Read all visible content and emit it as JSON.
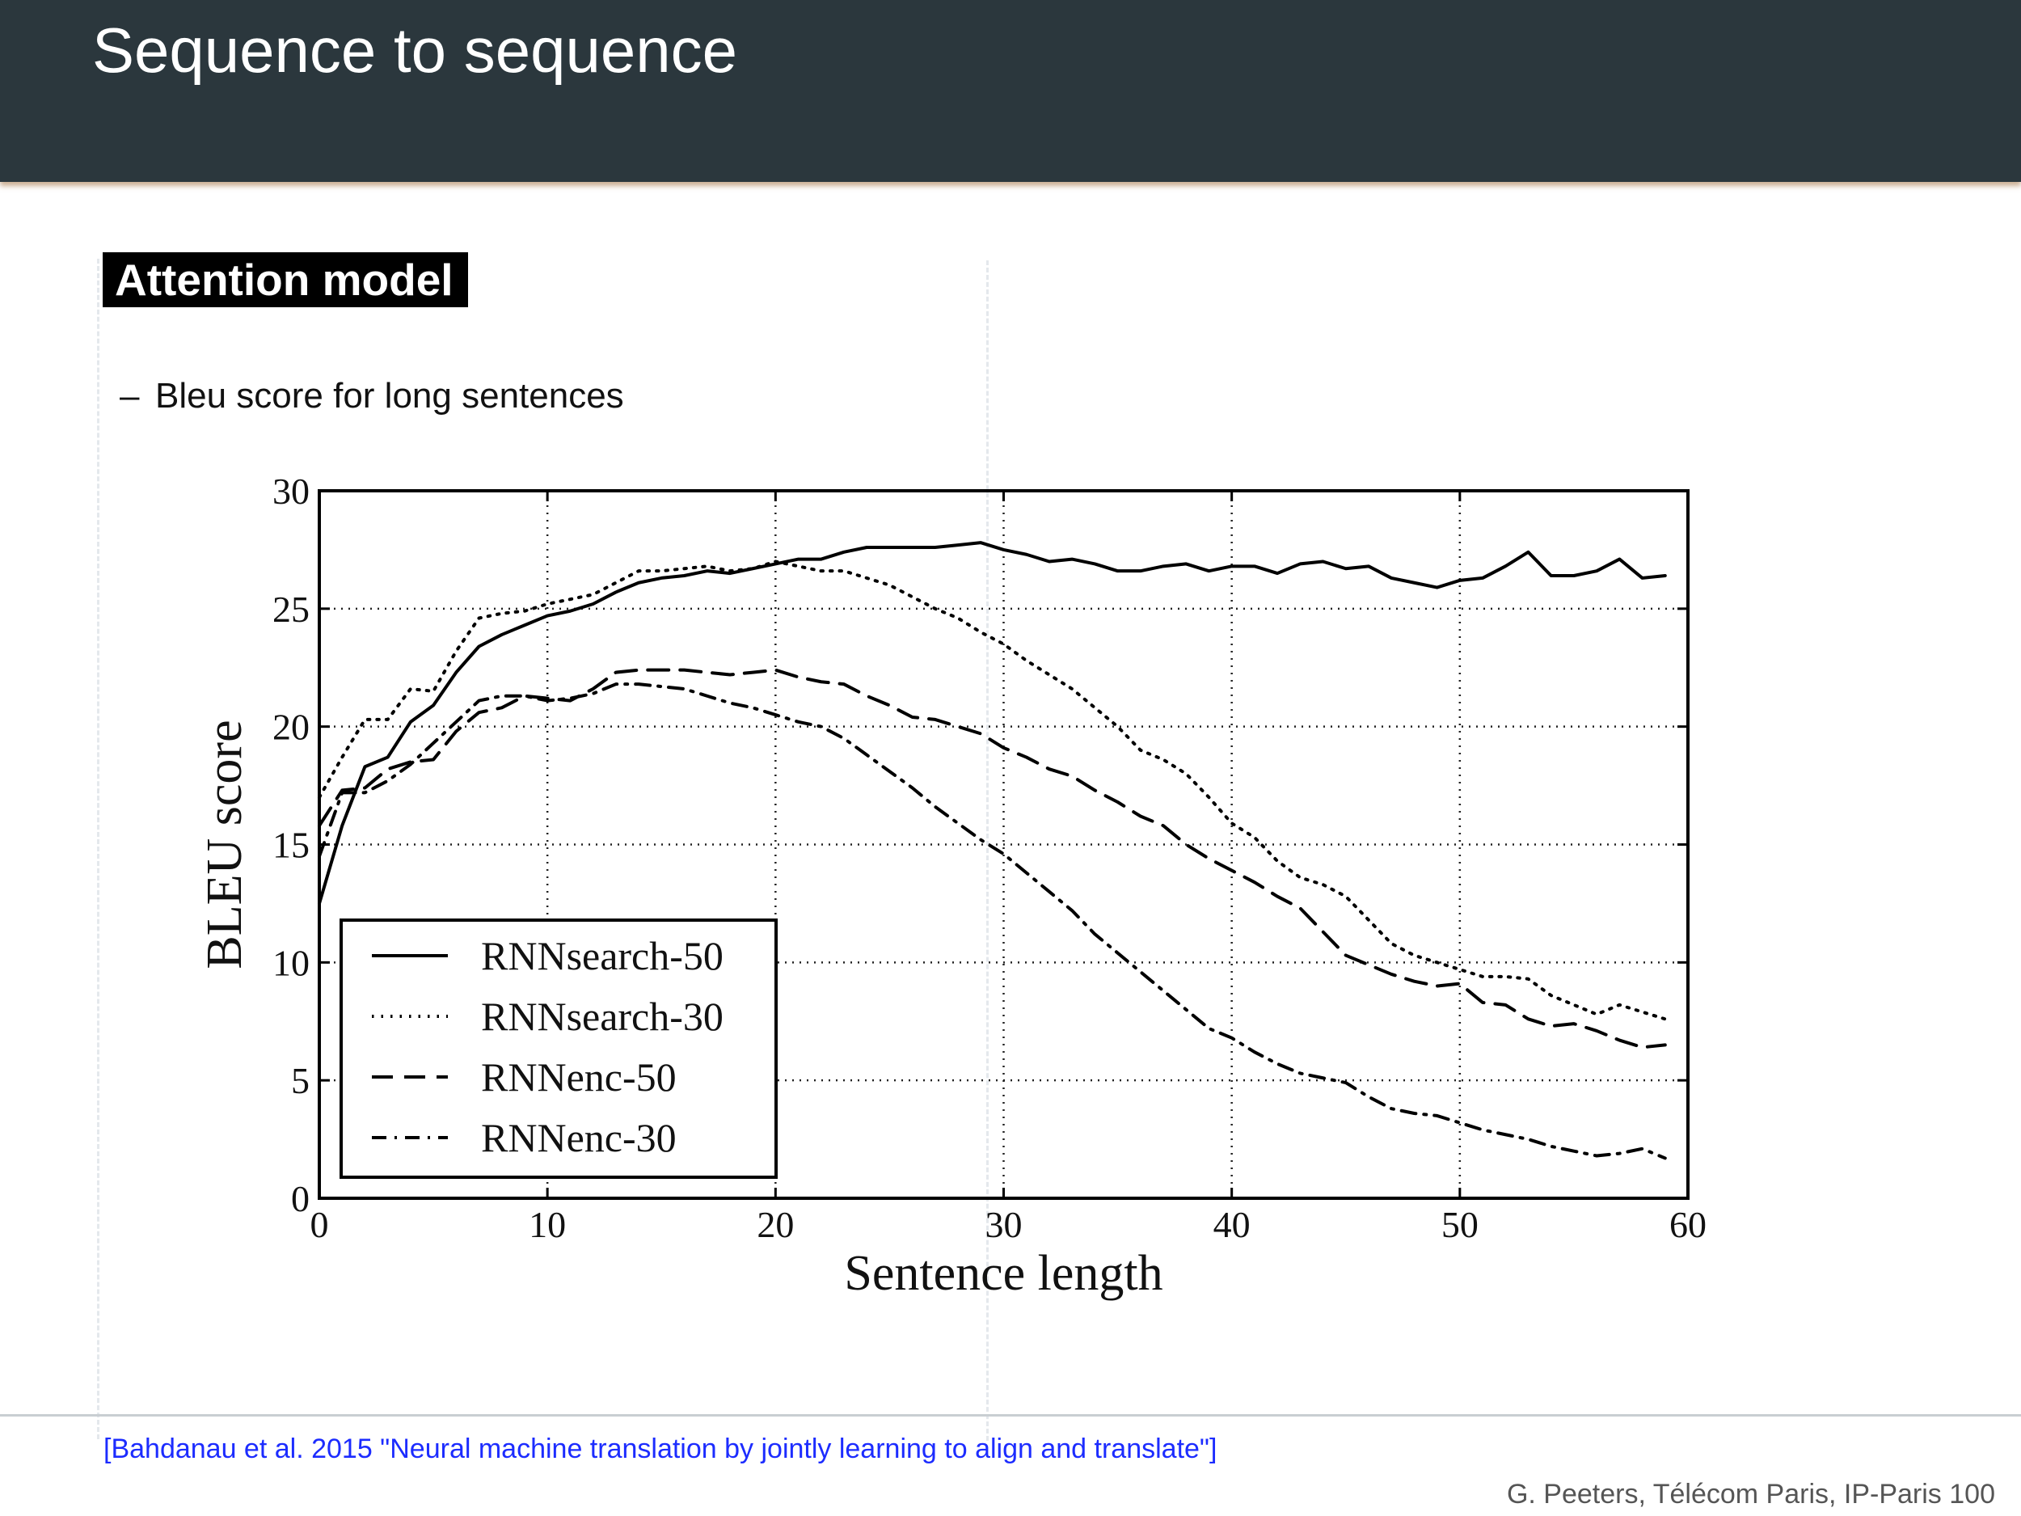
{
  "slide": {
    "title": "Sequence to sequence",
    "section": "Attention model",
    "bullet": "Bleu score for long sentences",
    "citation": "[Bahdanau et al. 2015 \"Neural machine translation by jointly learning to align and translate\"]",
    "footer": "G. Peeters, Télécom Paris, IP-Paris 100"
  },
  "colors": {
    "header_bg": "#2b373d",
    "accent": "#a86e3c",
    "citation": "#1c2cff"
  },
  "chart_data": {
    "type": "line",
    "xlabel": "Sentence length",
    "ylabel": "BLEU score",
    "xlim": [
      0,
      60
    ],
    "ylim": [
      0,
      30
    ],
    "xticks": [
      "0",
      "10",
      "20",
      "30",
      "40",
      "50",
      "60"
    ],
    "yticks": [
      "0",
      "5",
      "10",
      "15",
      "20",
      "25",
      "30"
    ],
    "grid": true,
    "legend_position": "lower-left",
    "x": [
      0,
      1,
      2,
      3,
      4,
      5,
      6,
      7,
      8,
      9,
      10,
      11,
      12,
      13,
      14,
      15,
      16,
      17,
      18,
      19,
      20,
      21,
      22,
      23,
      24,
      25,
      26,
      27,
      28,
      29,
      30,
      31,
      32,
      33,
      34,
      35,
      36,
      37,
      38,
      39,
      40,
      41,
      42,
      43,
      44,
      45,
      46,
      47,
      48,
      49,
      50,
      51,
      52,
      53,
      54,
      55,
      56,
      57,
      58,
      59
    ],
    "series": [
      {
        "name": "RNNsearch-50",
        "style": "solid",
        "values": [
          12.5,
          15.8,
          18.3,
          18.7,
          20.2,
          20.9,
          22.3,
          23.4,
          23.9,
          24.3,
          24.7,
          24.9,
          25.2,
          25.7,
          26.1,
          26.3,
          26.4,
          26.6,
          26.5,
          26.7,
          26.9,
          27.1,
          27.1,
          27.4,
          27.6,
          27.6,
          27.6,
          27.6,
          27.7,
          27.8,
          27.5,
          27.3,
          27.0,
          27.1,
          26.9,
          26.6,
          26.6,
          26.8,
          26.9,
          26.6,
          26.8,
          26.8,
          26.5,
          26.9,
          27.0,
          26.7,
          26.8,
          26.3,
          26.1,
          25.9,
          26.2,
          26.3,
          26.8,
          27.4,
          26.4,
          26.4,
          26.6,
          27.1,
          26.3,
          26.4
        ]
      },
      {
        "name": "RNNsearch-30",
        "style": "dotted",
        "values": [
          17.0,
          18.7,
          20.3,
          20.3,
          21.6,
          21.5,
          23.2,
          24.6,
          24.8,
          24.9,
          25.2,
          25.4,
          25.6,
          26.1,
          26.6,
          26.6,
          26.7,
          26.8,
          26.6,
          26.7,
          27.0,
          26.8,
          26.6,
          26.6,
          26.3,
          26.0,
          25.5,
          25.0,
          24.6,
          24.0,
          23.5,
          22.8,
          22.2,
          21.6,
          20.8,
          20.0,
          19.0,
          18.6,
          18.0,
          17.0,
          15.9,
          15.3,
          14.3,
          13.6,
          13.3,
          12.8,
          11.8,
          10.8,
          10.3,
          10.0,
          9.7,
          9.4,
          9.4,
          9.3,
          8.6,
          8.2,
          7.8,
          8.2,
          7.9,
          7.6
        ]
      },
      {
        "name": "RNNenc-50",
        "style": "dashed",
        "values": [
          15.8,
          17.3,
          17.4,
          18.2,
          18.5,
          18.6,
          19.8,
          20.6,
          20.8,
          21.3,
          21.2,
          21.1,
          21.6,
          22.3,
          22.4,
          22.4,
          22.4,
          22.3,
          22.2,
          22.3,
          22.4,
          22.1,
          21.9,
          21.8,
          21.3,
          20.9,
          20.4,
          20.3,
          20.0,
          19.7,
          19.1,
          18.7,
          18.2,
          17.9,
          17.3,
          16.8,
          16.2,
          15.8,
          15.0,
          14.4,
          13.9,
          13.4,
          12.8,
          12.3,
          11.3,
          10.3,
          9.9,
          9.5,
          9.2,
          9.0,
          9.1,
          8.3,
          8.2,
          7.6,
          7.3,
          7.4,
          7.1,
          6.7,
          6.4,
          6.5
        ]
      },
      {
        "name": "RNNenc-30",
        "style": "dashdot",
        "values": [
          14.5,
          17.2,
          17.2,
          17.7,
          18.4,
          19.3,
          20.2,
          21.1,
          21.3,
          21.3,
          21.1,
          21.2,
          21.4,
          21.8,
          21.8,
          21.7,
          21.6,
          21.3,
          21.0,
          20.8,
          20.5,
          20.2,
          20.0,
          19.5,
          18.8,
          18.1,
          17.4,
          16.6,
          15.9,
          15.2,
          14.6,
          13.8,
          13.0,
          12.2,
          11.2,
          10.4,
          9.6,
          8.8,
          8.0,
          7.2,
          6.8,
          6.2,
          5.7,
          5.3,
          5.1,
          4.9,
          4.3,
          3.8,
          3.6,
          3.5,
          3.2,
          2.9,
          2.7,
          2.5,
          2.2,
          2.0,
          1.8,
          1.9,
          2.1,
          1.7
        ]
      }
    ]
  }
}
